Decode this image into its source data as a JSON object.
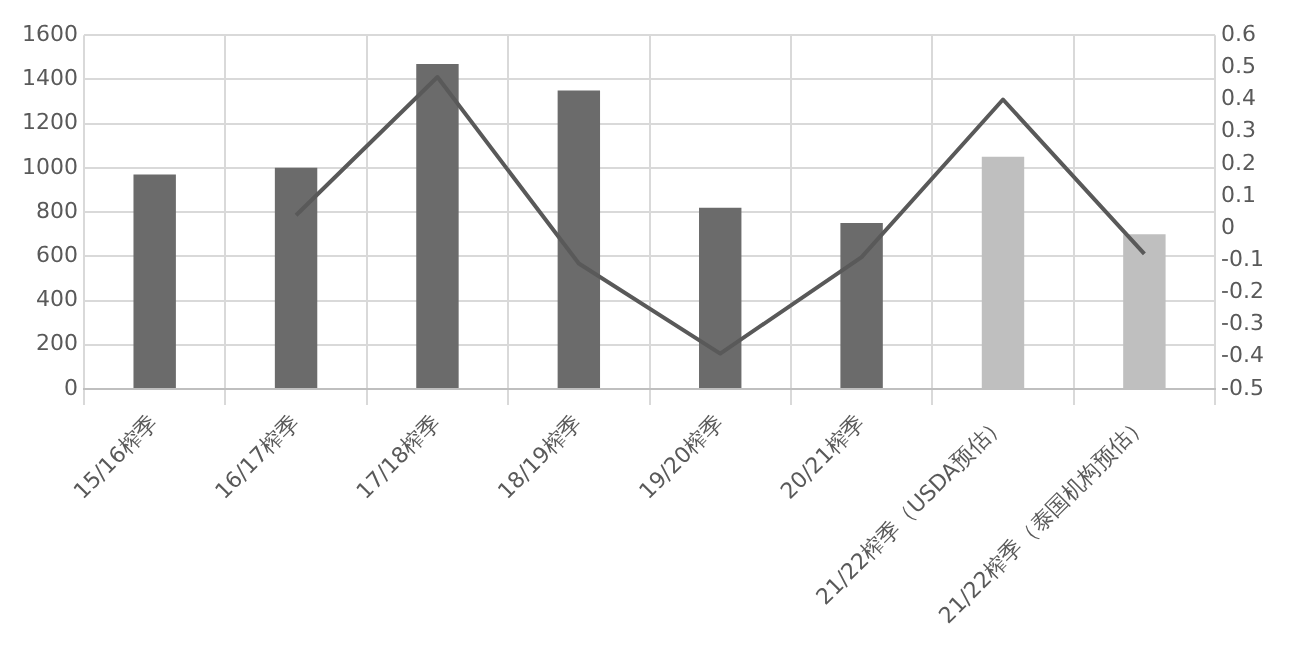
{
  "chart_data": {
    "type": "bar",
    "categories": [
      "15/16榨季",
      "16/17榨季",
      "17/18榨季",
      "18/19榨季",
      "19/20榨季",
      "20/21榨季",
      "21/22榨季（USDA预估）",
      "21/22榨季（泰国机构预估）"
    ],
    "series": [
      {
        "colors": [
          "#6b6b6b",
          "#6b6b6b",
          "#6b6b6b",
          "#6b6b6b",
          "#6b6b6b",
          "#6b6b6b",
          "#bfbfbf",
          "#bfbfbf"
        ],
        "values": [
          970,
          1000,
          1470,
          1350,
          820,
          750,
          1050,
          700
        ]
      },
      {
        "type": "line",
        "axis": "y2",
        "color": "#595959",
        "values": [
          null,
          0.04,
          0.47,
          -0.11,
          -0.39,
          -0.09,
          0.4,
          -0.08
        ]
      }
    ],
    "ylim": [
      0,
      1600
    ],
    "yticks": [
      0,
      200,
      400,
      600,
      800,
      1000,
      1200,
      1400,
      1600
    ],
    "y2lim": [
      -0.5,
      0.6
    ],
    "y2ticks": [
      -0.5,
      -0.4,
      -0.3,
      -0.2,
      -0.1,
      0,
      0.1,
      0.2,
      0.3,
      0.4,
      0.5,
      0.6
    ],
    "grid": true,
    "legend": false,
    "marker": "none"
  }
}
